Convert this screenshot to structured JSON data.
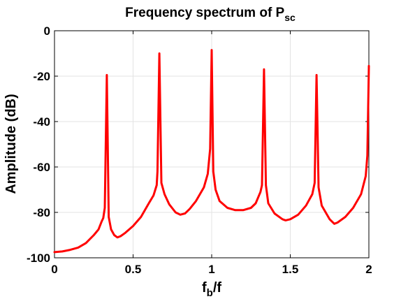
{
  "chart_data": {
    "type": "line",
    "title": "Frequency spectrum of P",
    "title_sub": "sc",
    "xlabel": "f",
    "xlabel_sub": "b",
    "xlabel_tail": "/f",
    "ylabel": "Amplitude (dB)",
    "xlim": [
      0,
      2
    ],
    "ylim": [
      -100,
      0
    ],
    "xticks": [
      0,
      0.5,
      1,
      1.5,
      2
    ],
    "xtick_labels": [
      "0",
      "0.5",
      "1",
      "1.5",
      "2"
    ],
    "yticks": [
      0,
      -20,
      -40,
      -60,
      -80,
      -100
    ],
    "ytick_labels": [
      "0",
      "-20",
      "-40",
      "-60",
      "-80",
      "-100"
    ],
    "grid": true,
    "series": [
      {
        "color": "#ff0000",
        "x": [
          0,
          0.05,
          0.1,
          0.15,
          0.2,
          0.25,
          0.28,
          0.3,
          0.31,
          0.32,
          0.333,
          0.345,
          0.36,
          0.38,
          0.4,
          0.42,
          0.45,
          0.5,
          0.55,
          0.6,
          0.63,
          0.65,
          0.655,
          0.667,
          0.68,
          0.7,
          0.73,
          0.77,
          0.8,
          0.83,
          0.86,
          0.9,
          0.95,
          0.975,
          0.99,
          1.0,
          1.01,
          1.025,
          1.05,
          1.1,
          1.15,
          1.2,
          1.25,
          1.28,
          1.31,
          1.32,
          1.333,
          1.345,
          1.36,
          1.4,
          1.45,
          1.47,
          1.5,
          1.55,
          1.6,
          1.64,
          1.655,
          1.667,
          1.68,
          1.7,
          1.75,
          1.78,
          1.8,
          1.85,
          1.9,
          1.95,
          1.98,
          1.99,
          2.0
        ],
        "y": [
          -97.5,
          -97.2,
          -96.5,
          -95.5,
          -93.5,
          -90,
          -87.5,
          -84,
          -82.5,
          -78,
          -19.5,
          -82,
          -87.5,
          -90,
          -91,
          -90.5,
          -89,
          -86,
          -82,
          -76,
          -72.5,
          -68,
          -62,
          -10,
          -67,
          -72,
          -76.5,
          -80,
          -81,
          -80.5,
          -78.5,
          -75,
          -69,
          -63,
          -52,
          -8.5,
          -62,
          -70,
          -75,
          -78,
          -79,
          -79,
          -78,
          -76,
          -71,
          -68,
          -17,
          -68,
          -76,
          -80.5,
          -83,
          -83.5,
          -83,
          -81,
          -77,
          -72,
          -67,
          -19.5,
          -69,
          -77,
          -83,
          -85,
          -84.5,
          -82,
          -78,
          -72,
          -64,
          -55,
          -15.5
        ]
      }
    ]
  }
}
